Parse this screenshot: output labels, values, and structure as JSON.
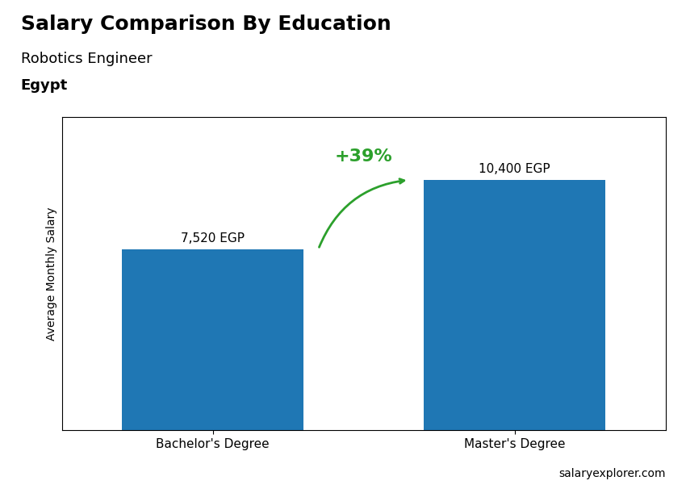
{
  "chart_data": {
    "type": "bar",
    "title": "Salary Comparison By Education",
    "subtitle": "Robotics Engineer",
    "annotations": [
      "Egypt",
      "+39%",
      "salaryexplorer.com"
    ],
    "y_label": "Average Monthly Salary",
    "categories": [
      "Bachelor's Degree",
      "Master's Degree"
    ],
    "values": [
      7520,
      10400
    ],
    "value_labels": [
      "7,520 EGP",
      "10,400 EGP"
    ],
    "data_labels": true,
    "ylim": [
      0,
      13000
    ],
    "tick_labels": "x"
  }
}
